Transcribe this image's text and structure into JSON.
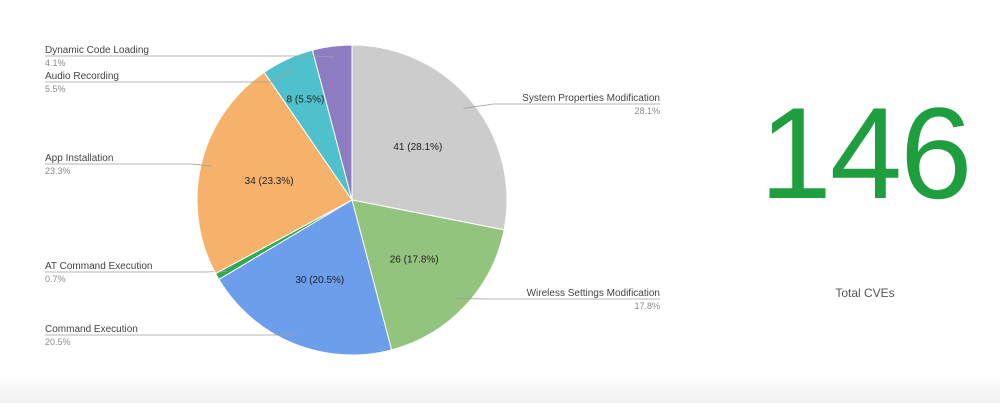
{
  "chart_data": {
    "type": "pie",
    "slices": [
      {
        "name": "System Properties Modification",
        "value": 41,
        "percent": "28.1%",
        "label": "41 (28.1%)",
        "color": "#cccccc"
      },
      {
        "name": "Wireless Settings Modification",
        "value": 26,
        "percent": "17.8%",
        "label": "26 (17.8%)",
        "color": "#93c47d"
      },
      {
        "name": "Command Execution",
        "value": 30,
        "percent": "20.5%",
        "label": "30 (20.5%)",
        "color": "#6d9eeb"
      },
      {
        "name": "AT Command Execution",
        "value": 1,
        "percent": "0.7%",
        "label": "",
        "color": "#34a853"
      },
      {
        "name": "App Installation",
        "value": 34,
        "percent": "23.3%",
        "label": "34 (23.3%)",
        "color": "#f6b26b"
      },
      {
        "name": "Audio Recording",
        "value": 8,
        "percent": "5.5%",
        "label": "8 (5.5%)",
        "color": "#4fc1cc"
      },
      {
        "name": "Dynamic Code Loading",
        "value": 6,
        "percent": "4.1%",
        "label": "",
        "color": "#8e7cc3"
      }
    ]
  },
  "kpi": {
    "value": "146",
    "label": "Total CVEs",
    "color": "#1e9e3e"
  }
}
